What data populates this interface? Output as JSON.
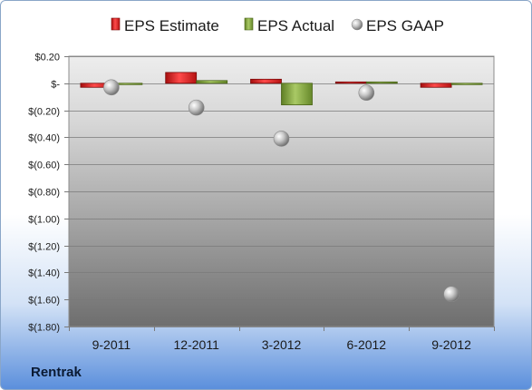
{
  "company": "Rentrak",
  "chart_data": {
    "type": "bar",
    "title": "",
    "xlabel": "",
    "ylabel": "",
    "categories": [
      "9-2011",
      "12-2011",
      "3-2012",
      "6-2012",
      "9-2012"
    ],
    "series": [
      {
        "name": "EPS Estimate",
        "kind": "bar",
        "values": [
          -0.03,
          0.08,
          0.03,
          0.01,
          -0.03
        ],
        "color": "#e02020"
      },
      {
        "name": "EPS Actual",
        "kind": "bar",
        "values": [
          -0.01,
          0.02,
          -0.16,
          0.01,
          -0.01
        ],
        "color": "#8cb043"
      },
      {
        "name": "EPS GAAP",
        "kind": "point",
        "values": [
          -0.03,
          -0.18,
          -0.41,
          -0.07,
          -1.56
        ],
        "color": "#b4b4b4"
      }
    ],
    "ylim": [
      -1.8,
      0.2
    ],
    "yticks": [
      0.2,
      0,
      -0.2,
      -0.4,
      -0.6,
      -0.8,
      -1.0,
      -1.2,
      -1.4,
      -1.6,
      -1.8
    ],
    "ytick_labels": [
      "$0.20",
      "$-",
      "$(0.20)",
      "$(0.40)",
      "$(0.60)",
      "$(0.80)",
      "$(1.00)",
      "$(1.20)",
      "$(1.40)",
      "$(1.60)",
      "$(1.80)"
    ],
    "grid": true,
    "legend_position": "top"
  }
}
